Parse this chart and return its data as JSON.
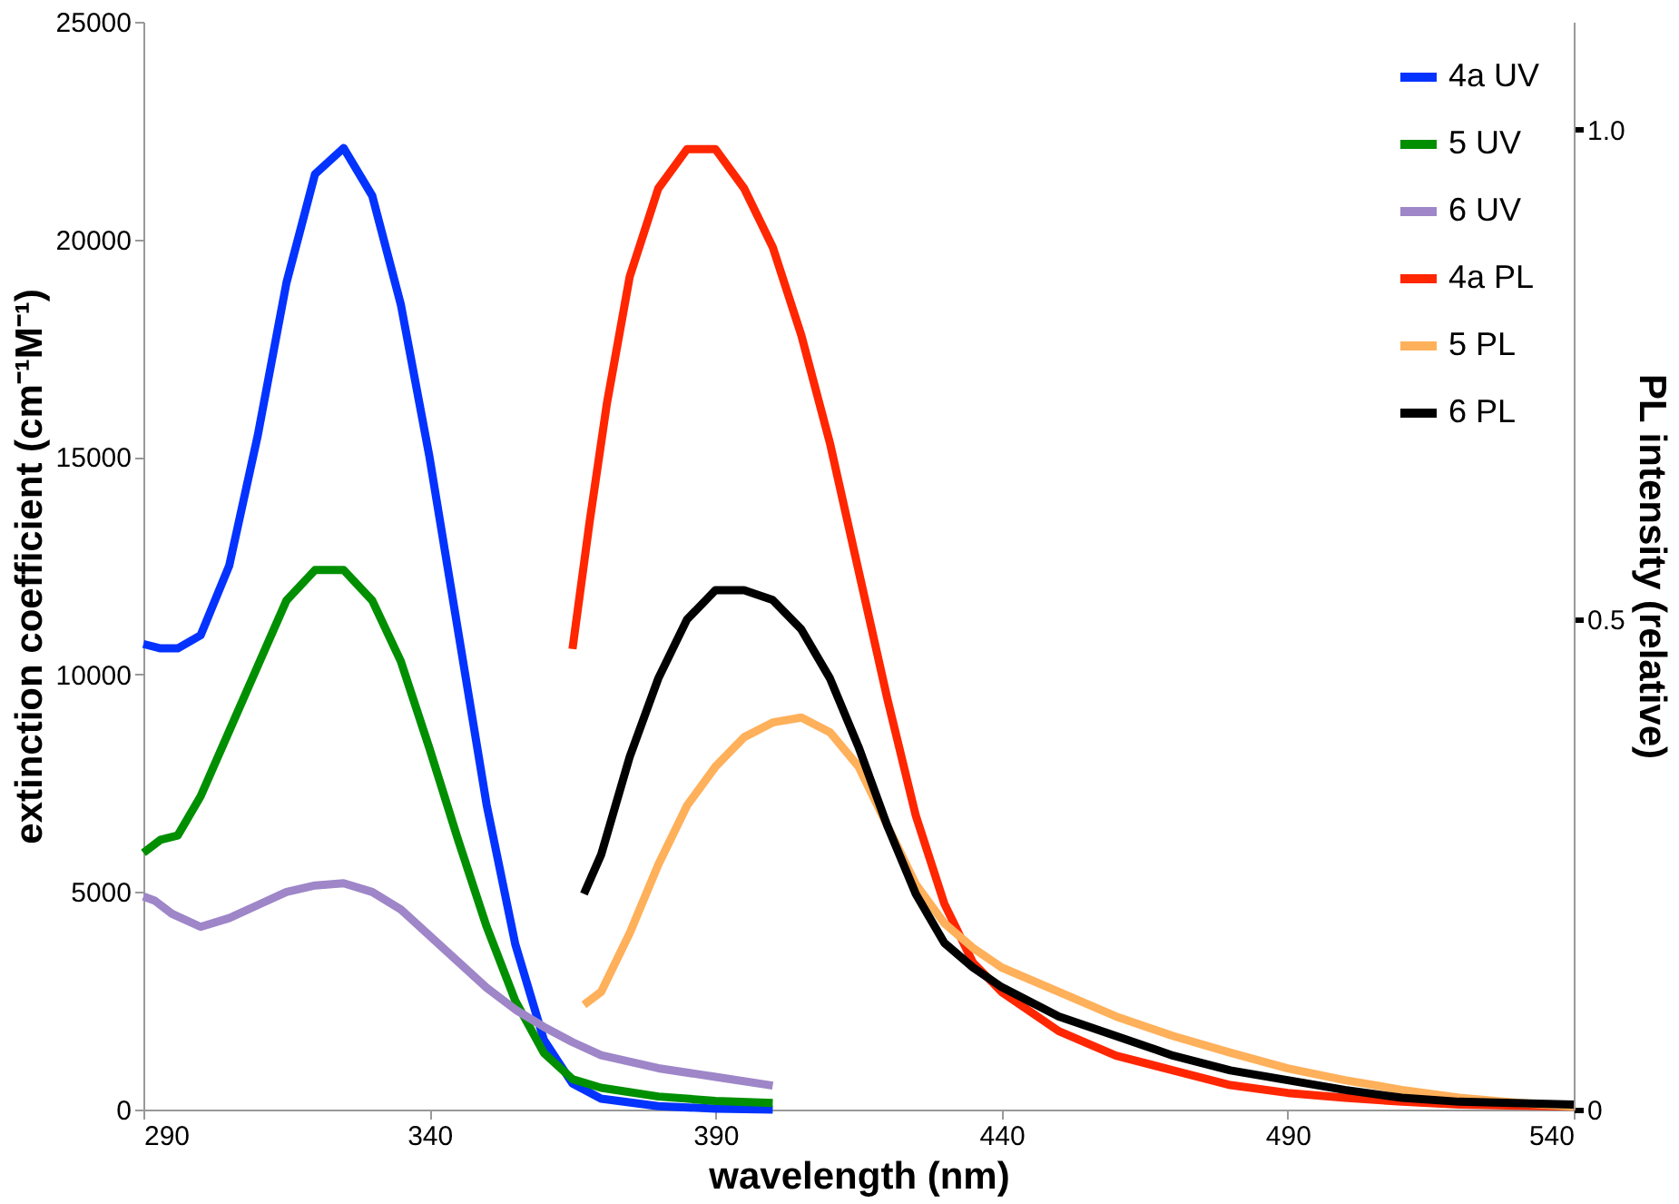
{
  "chart_data": {
    "type": "line",
    "xlabel": "wavelength (nm)",
    "ylabel": "extinction coefficient (cm⁻¹M⁻¹)",
    "y2label": "PL intensity (relative)",
    "xlim": [
      290,
      540
    ],
    "xticks": [
      290,
      340,
      390,
      440,
      490,
      540
    ],
    "ylim": [
      0,
      25000
    ],
    "yticks": [
      0,
      5000,
      10000,
      15000,
      20000,
      25000
    ],
    "y2lim": [
      0,
      1.11
    ],
    "y2ticks": [
      0,
      0.5,
      {
        "value": 1,
        "label": "1.0"
      }
    ],
    "legend": "top right",
    "grid": false,
    "marker": "none",
    "line_style": "solid",
    "series": [
      {
        "name": "4a UV",
        "color": "#0433ff",
        "x": [
          290,
          293,
          296,
          300,
          305,
          310,
          315,
          320,
          325,
          330,
          335,
          340,
          345,
          350,
          355,
          360,
          365,
          370,
          380,
          390,
          400
        ],
        "values": [
          10700,
          10600,
          10600,
          10900,
          12500,
          15500,
          19000,
          21500,
          22100,
          21000,
          18500,
          15000,
          11000,
          7000,
          3800,
          1600,
          600,
          250,
          80,
          20,
          0
        ]
      },
      {
        "name": "5 UV",
        "color": "#008f00",
        "x": [
          290,
          293,
          296,
          300,
          305,
          310,
          315,
          320,
          325,
          330,
          335,
          340,
          345,
          350,
          355,
          360,
          365,
          370,
          380,
          390,
          400
        ],
        "values": [
          5900,
          6200,
          6300,
          7200,
          8700,
          10200,
          11700,
          12400,
          12400,
          11700,
          10300,
          8300,
          6200,
          4200,
          2500,
          1300,
          700,
          500,
          300,
          200,
          150
        ]
      },
      {
        "name": "6 UV",
        "color": "#9e86c8",
        "x": [
          290,
          292,
          295,
          300,
          305,
          310,
          315,
          320,
          325,
          330,
          335,
          340,
          345,
          350,
          355,
          360,
          365,
          370,
          380,
          390,
          400
        ],
        "values": [
          4900,
          4800,
          4500,
          4200,
          4400,
          4700,
          5000,
          5150,
          5200,
          5000,
          4600,
          4000,
          3400,
          2800,
          2300,
          1900,
          1550,
          1250,
          950,
          750,
          550
        ]
      },
      {
        "name": "4a PL",
        "color": "#ff2600",
        "axis": "y2",
        "x": [
          365,
          368,
          371,
          375,
          380,
          385,
          390,
          395,
          400,
          405,
          410,
          415,
          420,
          425,
          430,
          435,
          440,
          450,
          460,
          470,
          480,
          490,
          500,
          510,
          520,
          540
        ],
        "values": [
          0.47,
          0.6,
          0.72,
          0.85,
          0.94,
          0.98,
          0.98,
          0.94,
          0.88,
          0.79,
          0.68,
          0.55,
          0.42,
          0.3,
          0.21,
          0.15,
          0.12,
          0.08,
          0.055,
          0.04,
          0.025,
          0.017,
          0.012,
          0.008,
          0.005,
          0.003
        ]
      },
      {
        "name": "5 PL",
        "color": "#ffb05a",
        "axis": "y2",
        "x": [
          367,
          370,
          375,
          380,
          385,
          390,
          395,
          400,
          405,
          410,
          415,
          420,
          425,
          430,
          435,
          440,
          450,
          460,
          470,
          480,
          490,
          500,
          510,
          520,
          530,
          540
        ],
        "values": [
          0.107,
          0.12,
          0.18,
          0.25,
          0.31,
          0.35,
          0.38,
          0.395,
          0.4,
          0.385,
          0.35,
          0.29,
          0.23,
          0.19,
          0.165,
          0.145,
          0.12,
          0.095,
          0.075,
          0.058,
          0.042,
          0.03,
          0.02,
          0.012,
          0.007,
          0.003
        ]
      },
      {
        "name": "6 PL",
        "color": "#000000",
        "axis": "y2",
        "x": [
          367,
          370,
          375,
          380,
          385,
          390,
          395,
          400,
          405,
          410,
          415,
          420,
          425,
          430,
          435,
          440,
          450,
          460,
          470,
          480,
          490,
          500,
          510,
          520,
          540
        ],
        "values": [
          0.22,
          0.26,
          0.36,
          0.44,
          0.5,
          0.53,
          0.53,
          0.52,
          0.49,
          0.44,
          0.37,
          0.29,
          0.22,
          0.17,
          0.145,
          0.125,
          0.095,
          0.075,
          0.055,
          0.04,
          0.03,
          0.02,
          0.012,
          0.008,
          0.005
        ]
      }
    ]
  }
}
